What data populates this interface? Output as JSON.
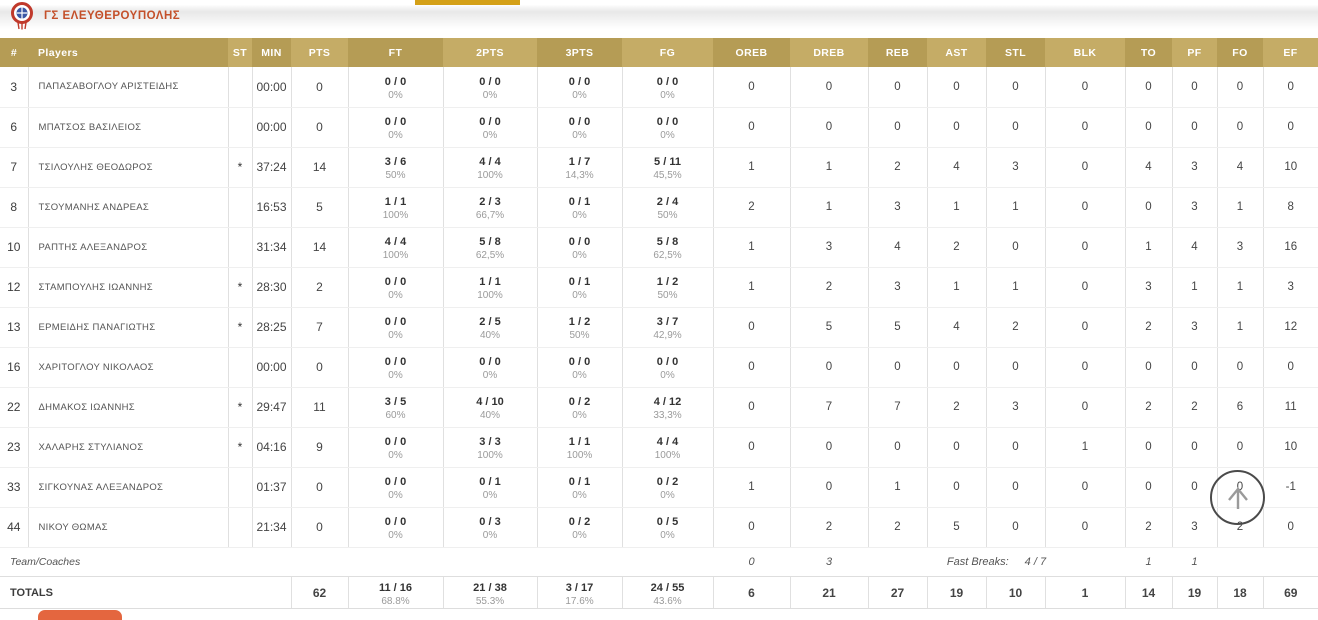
{
  "team": {
    "name": "ΓΣ ΕΛΕΥΘΕΡΟΥΠΟΛΗΣ"
  },
  "colors": {
    "gold-dark": "#b59c55",
    "gold-light": "#c5ac66",
    "team-orange": "#c4502a",
    "tab-gold": "#d4a017",
    "tab-orange": "#e4663f"
  },
  "table": {
    "columns": [
      "#",
      "Players",
      "ST",
      "MIN",
      "PTS",
      "FT",
      "2PTS",
      "3PTS",
      "FG",
      "OREB",
      "DREB",
      "REB",
      "AST",
      "STL",
      "BLK",
      "TO",
      "PF",
      "FO",
      "EF"
    ],
    "players": [
      {
        "num": "3",
        "name": "ΠΑΠΑΣΑΒΟΓΛΟΥ ΑΡΙΣΤΕΙΔΗΣ",
        "st": "",
        "min": "00:00",
        "pts": "0",
        "ft": [
          "0 / 0",
          "0%"
        ],
        "p2": [
          "0 / 0",
          "0%"
        ],
        "p3": [
          "0 / 0",
          "0%"
        ],
        "fg": [
          "0 / 0",
          "0%"
        ],
        "oreb": "0",
        "dreb": "0",
        "reb": "0",
        "ast": "0",
        "stl": "0",
        "blk": "0",
        "to": "0",
        "pf": "0",
        "fo": "0",
        "ef": "0"
      },
      {
        "num": "6",
        "name": "ΜΠΑΤΣΟΣ ΒΑΣΙΛΕΙΟΣ",
        "st": "",
        "min": "00:00",
        "pts": "0",
        "ft": [
          "0 / 0",
          "0%"
        ],
        "p2": [
          "0 / 0",
          "0%"
        ],
        "p3": [
          "0 / 0",
          "0%"
        ],
        "fg": [
          "0 / 0",
          "0%"
        ],
        "oreb": "0",
        "dreb": "0",
        "reb": "0",
        "ast": "0",
        "stl": "0",
        "blk": "0",
        "to": "0",
        "pf": "0",
        "fo": "0",
        "ef": "0"
      },
      {
        "num": "7",
        "name": "ΤΣΙΛΟΥΛΗΣ ΘΕΟΔΩΡΟΣ",
        "st": "*",
        "min": "37:24",
        "pts": "14",
        "ft": [
          "3 / 6",
          "50%"
        ],
        "p2": [
          "4 / 4",
          "100%"
        ],
        "p3": [
          "1 / 7",
          "14,3%"
        ],
        "fg": [
          "5 / 11",
          "45,5%"
        ],
        "oreb": "1",
        "dreb": "1",
        "reb": "2",
        "ast": "4",
        "stl": "3",
        "blk": "0",
        "to": "4",
        "pf": "3",
        "fo": "4",
        "ef": "10"
      },
      {
        "num": "8",
        "name": "ΤΣΟΥΜΑΝΗΣ ΑΝΔΡΕΑΣ",
        "st": "",
        "min": "16:53",
        "pts": "5",
        "ft": [
          "1 / 1",
          "100%"
        ],
        "p2": [
          "2 / 3",
          "66,7%"
        ],
        "p3": [
          "0 / 1",
          "0%"
        ],
        "fg": [
          "2 / 4",
          "50%"
        ],
        "oreb": "2",
        "dreb": "1",
        "reb": "3",
        "ast": "1",
        "stl": "1",
        "blk": "0",
        "to": "0",
        "pf": "3",
        "fo": "1",
        "ef": "8"
      },
      {
        "num": "10",
        "name": "ΡΑΠΤΗΣ ΑΛΕΞΑΝΔΡΟΣ",
        "st": "",
        "min": "31:34",
        "pts": "14",
        "ft": [
          "4 / 4",
          "100%"
        ],
        "p2": [
          "5 / 8",
          "62,5%"
        ],
        "p3": [
          "0 / 0",
          "0%"
        ],
        "fg": [
          "5 / 8",
          "62,5%"
        ],
        "oreb": "1",
        "dreb": "3",
        "reb": "4",
        "ast": "2",
        "stl": "0",
        "blk": "0",
        "to": "1",
        "pf": "4",
        "fo": "3",
        "ef": "16"
      },
      {
        "num": "12",
        "name": "ΣΤΑΜΠΟΥΛΗΣ ΙΩΑΝΝΗΣ",
        "st": "*",
        "min": "28:30",
        "pts": "2",
        "ft": [
          "0 / 0",
          "0%"
        ],
        "p2": [
          "1 / 1",
          "100%"
        ],
        "p3": [
          "0 / 1",
          "0%"
        ],
        "fg": [
          "1 / 2",
          "50%"
        ],
        "oreb": "1",
        "dreb": "2",
        "reb": "3",
        "ast": "1",
        "stl": "1",
        "blk": "0",
        "to": "3",
        "pf": "1",
        "fo": "1",
        "ef": "3"
      },
      {
        "num": "13",
        "name": "ΕΡΜΕΙΔΗΣ ΠΑΝΑΓΙΩΤΗΣ",
        "st": "*",
        "min": "28:25",
        "pts": "7",
        "ft": [
          "0 / 0",
          "0%"
        ],
        "p2": [
          "2 / 5",
          "40%"
        ],
        "p3": [
          "1 / 2",
          "50%"
        ],
        "fg": [
          "3 / 7",
          "42,9%"
        ],
        "oreb": "0",
        "dreb": "5",
        "reb": "5",
        "ast": "4",
        "stl": "2",
        "blk": "0",
        "to": "2",
        "pf": "3",
        "fo": "1",
        "ef": "12"
      },
      {
        "num": "16",
        "name": "ΧΑΡΙΤΟΓΛΟΥ ΝΙΚΟΛΑΟΣ",
        "st": "",
        "min": "00:00",
        "pts": "0",
        "ft": [
          "0 / 0",
          "0%"
        ],
        "p2": [
          "0 / 0",
          "0%"
        ],
        "p3": [
          "0 / 0",
          "0%"
        ],
        "fg": [
          "0 / 0",
          "0%"
        ],
        "oreb": "0",
        "dreb": "0",
        "reb": "0",
        "ast": "0",
        "stl": "0",
        "blk": "0",
        "to": "0",
        "pf": "0",
        "fo": "0",
        "ef": "0"
      },
      {
        "num": "22",
        "name": "ΔΗΜΑΚΟΣ ΙΩΑΝΝΗΣ",
        "st": "*",
        "min": "29:47",
        "pts": "11",
        "ft": [
          "3 / 5",
          "60%"
        ],
        "p2": [
          "4 / 10",
          "40%"
        ],
        "p3": [
          "0 / 2",
          "0%"
        ],
        "fg": [
          "4 / 12",
          "33,3%"
        ],
        "oreb": "0",
        "dreb": "7",
        "reb": "7",
        "ast": "2",
        "stl": "3",
        "blk": "0",
        "to": "2",
        "pf": "2",
        "fo": "6",
        "ef": "11"
      },
      {
        "num": "23",
        "name": "ΧΑΛΑΡΗΣ ΣΤΥΛΙΑΝΟΣ",
        "st": "*",
        "min": "04:16",
        "pts": "9",
        "ft": [
          "0 / 0",
          "0%"
        ],
        "p2": [
          "3 / 3",
          "100%"
        ],
        "p3": [
          "1 / 1",
          "100%"
        ],
        "fg": [
          "4 / 4",
          "100%"
        ],
        "oreb": "0",
        "dreb": "0",
        "reb": "0",
        "ast": "0",
        "stl": "0",
        "blk": "1",
        "to": "0",
        "pf": "0",
        "fo": "0",
        "ef": "10"
      },
      {
        "num": "33",
        "name": "ΣΙΓΚΟΥΝΑΣ ΑΛΕΞΑΝΔΡΟΣ",
        "st": "",
        "min": "01:37",
        "pts": "0",
        "ft": [
          "0 / 0",
          "0%"
        ],
        "p2": [
          "0 / 1",
          "0%"
        ],
        "p3": [
          "0 / 1",
          "0%"
        ],
        "fg": [
          "0 / 2",
          "0%"
        ],
        "oreb": "1",
        "dreb": "0",
        "reb": "1",
        "ast": "0",
        "stl": "0",
        "blk": "0",
        "to": "0",
        "pf": "0",
        "fo": "0",
        "ef": "-1"
      },
      {
        "num": "44",
        "name": "ΝΙΚΟΥ ΘΩΜΑΣ",
        "st": "",
        "min": "21:34",
        "pts": "0",
        "ft": [
          "0 / 0",
          "0%"
        ],
        "p2": [
          "0 / 3",
          "0%"
        ],
        "p3": [
          "0 / 2",
          "0%"
        ],
        "fg": [
          "0 / 5",
          "0%"
        ],
        "oreb": "0",
        "dreb": "2",
        "reb": "2",
        "ast": "5",
        "stl": "0",
        "blk": "0",
        "to": "2",
        "pf": "3",
        "fo": "2",
        "ef": "0"
      }
    ],
    "team_row": {
      "label": "Team/Coaches",
      "oreb": "0",
      "dreb": "3",
      "fast_breaks_label": "Fast Breaks:",
      "fast_breaks_value": "4 / 7",
      "to": "1",
      "pf": "1"
    },
    "totals": {
      "label": "TOTALS",
      "pts": "62",
      "ft": [
        "11 / 16",
        "68.8%"
      ],
      "p2": [
        "21 / 38",
        "55.3%"
      ],
      "p3": [
        "3 / 17",
        "17.6%"
      ],
      "fg": [
        "24 / 55",
        "43.6%"
      ],
      "oreb": "6",
      "dreb": "21",
      "reb": "27",
      "ast": "19",
      "stl": "10",
      "blk": "1",
      "to": "14",
      "pf": "19",
      "fo": "18",
      "ef": "69"
    }
  }
}
